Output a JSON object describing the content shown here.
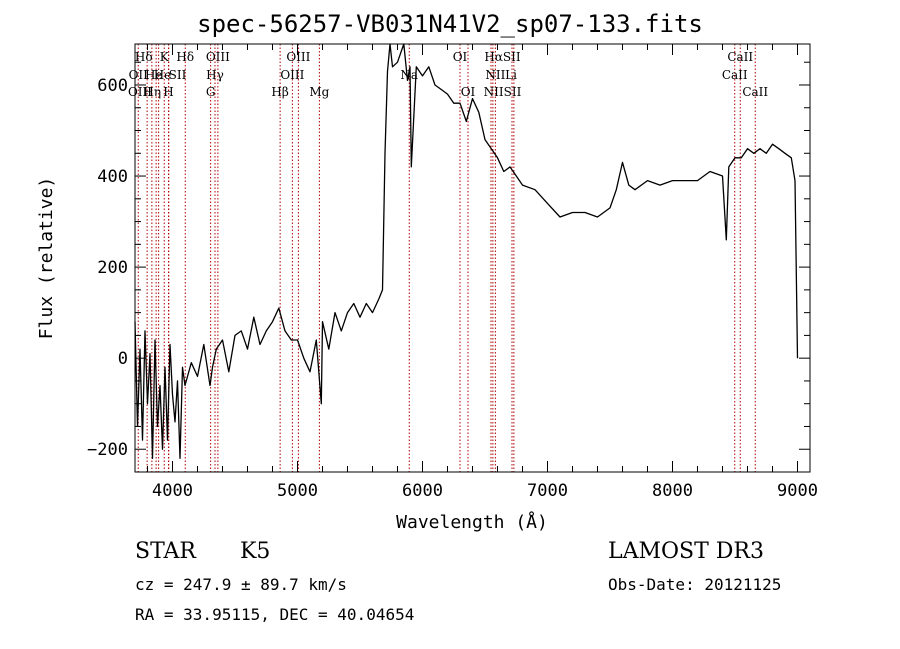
{
  "chart_data": {
    "type": "line",
    "title": "spec-56257-VB031N41V2_sp07-133.fits",
    "xlabel": "Wavelength (Å)",
    "ylabel": "Flux (relative)",
    "xlim": [
      3700,
      9100
    ],
    "ylim": [
      -250,
      690
    ],
    "x_ticks": [
      4000,
      5000,
      6000,
      7000,
      8000,
      9000
    ],
    "x_tick_labels": [
      "4000",
      "5000",
      "6000",
      "7000",
      "8000",
      "9000"
    ],
    "y_ticks": [
      -200,
      0,
      200,
      400,
      600
    ],
    "y_tick_labels": [
      "−200",
      "0",
      "200",
      "400",
      "600"
    ],
    "series": [
      {
        "name": "flux",
        "x": [
          3700,
          3720,
          3740,
          3760,
          3780,
          3800,
          3820,
          3840,
          3860,
          3880,
          3900,
          3920,
          3940,
          3960,
          3980,
          4000,
          4020,
          4040,
          4060,
          4080,
          4100,
          4150,
          4200,
          4250,
          4300,
          4320,
          4350,
          4400,
          4450,
          4500,
          4550,
          4600,
          4650,
          4700,
          4750,
          4800,
          4850,
          4900,
          4950,
          5000,
          5050,
          5100,
          5150,
          5190,
          5200,
          5250,
          5300,
          5350,
          5400,
          5450,
          5500,
          5550,
          5600,
          5650,
          5680,
          5700,
          5720,
          5740,
          5760,
          5800,
          5850,
          5880,
          5900,
          5910,
          5950,
          6000,
          6050,
          6100,
          6150,
          6200,
          6250,
          6300,
          6350,
          6400,
          6450,
          6500,
          6550,
          6600,
          6650,
          6700,
          6750,
          6800,
          6900,
          7000,
          7100,
          7200,
          7300,
          7400,
          7500,
          7550,
          7600,
          7650,
          7700,
          7800,
          7900,
          8000,
          8100,
          8200,
          8300,
          8400,
          8430,
          8450,
          8500,
          8550,
          8600,
          8650,
          8700,
          8750,
          8800,
          8850,
          8900,
          8950,
          8980,
          9000
        ],
        "y": [
          80,
          -150,
          20,
          -180,
          60,
          -100,
          10,
          -220,
          40,
          -150,
          -60,
          -200,
          -20,
          -180,
          30,
          -80,
          -140,
          -50,
          -220,
          -20,
          -60,
          -10,
          -40,
          30,
          -60,
          -20,
          20,
          40,
          -30,
          50,
          60,
          20,
          90,
          30,
          60,
          80,
          110,
          60,
          40,
          40,
          0,
          -30,
          40,
          -100,
          80,
          20,
          100,
          60,
          100,
          120,
          90,
          120,
          100,
          130,
          150,
          450,
          630,
          710,
          640,
          650,
          690,
          610,
          640,
          420,
          640,
          620,
          640,
          600,
          590,
          580,
          560,
          560,
          520,
          570,
          540,
          480,
          460,
          440,
          410,
          420,
          400,
          380,
          370,
          340,
          310,
          320,
          320,
          310,
          330,
          370,
          430,
          380,
          370,
          390,
          380,
          390,
          390,
          390,
          410,
          400,
          260,
          420,
          440,
          440,
          460,
          450,
          460,
          450,
          470,
          460,
          450,
          440,
          390,
          0
        ]
      }
    ],
    "emission_lines": [
      {
        "wavelength": 3726,
        "label": "OII"
      },
      {
        "wavelength": 3797,
        "label": "Hθ"
      },
      {
        "wavelength": 3835,
        "label": "Hη"
      },
      {
        "wavelength": 3869,
        "label": "NeIII"
      },
      {
        "wavelength": 3889,
        "label": "Hζ"
      },
      {
        "wavelength": 3970,
        "label": "Hε"
      },
      {
        "wavelength": 4102,
        "label": "Hδ"
      },
      {
        "wavelength": 4340,
        "label": "Hγ"
      },
      {
        "wavelength": 4363,
        "label": "OIII"
      },
      {
        "wavelength": 4861,
        "label": "Hβ"
      },
      {
        "wavelength": 4959,
        "label": "OIII"
      },
      {
        "wavelength": 5007,
        "label": "OIII"
      },
      {
        "wavelength": 6300,
        "label": "OI"
      },
      {
        "wavelength": 6364,
        "label": "OI"
      },
      {
        "wavelength": 6548,
        "label": "NII"
      },
      {
        "wavelength": 6563,
        "label": "Hα"
      },
      {
        "wavelength": 6583,
        "label": "NII"
      },
      {
        "wavelength": 6716,
        "label": "SII"
      },
      {
        "wavelength": 6731,
        "label": "SII"
      },
      {
        "wavelength": 8498,
        "label": "CaII"
      },
      {
        "wavelength": 8542,
        "label": "CaII"
      },
      {
        "wavelength": 8662,
        "label": "CaII"
      }
    ],
    "absorption_lines": [
      {
        "wavelength": 3934,
        "label": "K"
      },
      {
        "wavelength": 3968,
        "label": "H"
      },
      {
        "wavelength": 4305,
        "label": "G"
      },
      {
        "wavelength": 5175,
        "label": "Mg"
      },
      {
        "wavelength": 5894,
        "label": "Na"
      }
    ],
    "line_labels": [
      {
        "text": "Hδ",
        "wl": 3770,
        "row": 0
      },
      {
        "text": "K",
        "wl": 3934,
        "row": 0
      },
      {
        "text": "Hδ",
        "wl": 4102,
        "row": 0
      },
      {
        "text": "OIII",
        "wl": 4363,
        "row": 0
      },
      {
        "text": "OIII",
        "wl": 5007,
        "row": 0
      },
      {
        "text": "OI",
        "wl": 6300,
        "row": 0
      },
      {
        "text": "HαSII",
        "wl": 6640,
        "row": 0
      },
      {
        "text": "CaII",
        "wl": 8542,
        "row": 0
      },
      {
        "text": "OII",
        "wl": 3726,
        "row": 1
      },
      {
        "text": "He",
        "wl": 3850,
        "row": 1
      },
      {
        "text": "He",
        "wl": 3920,
        "row": 1
      },
      {
        "text": "SII",
        "wl": 4040,
        "row": 1
      },
      {
        "text": "Hγ",
        "wl": 4340,
        "row": 1
      },
      {
        "text": "OIII",
        "wl": 4959,
        "row": 1
      },
      {
        "text": "Na",
        "wl": 5894,
        "row": 1
      },
      {
        "text": "NII",
        "wl": 6583,
        "row": 1
      },
      {
        "text": "Li",
        "wl": 6708,
        "row": 1
      },
      {
        "text": "CaII",
        "wl": 8498,
        "row": 1
      },
      {
        "text": "OIII",
        "wl": 3740,
        "row": 2
      },
      {
        "text": "Hη",
        "wl": 3838,
        "row": 2
      },
      {
        "text": "H",
        "wl": 3968,
        "row": 2
      },
      {
        "text": "G",
        "wl": 4305,
        "row": 2
      },
      {
        "text": "Hβ",
        "wl": 4861,
        "row": 2
      },
      {
        "text": "Mg",
        "wl": 5175,
        "row": 2
      },
      {
        "text": "OI",
        "wl": 6364,
        "row": 2
      },
      {
        "text": "NIISII",
        "wl": 6640,
        "row": 2
      },
      {
        "text": "CaII",
        "wl": 8662,
        "row": 2
      }
    ]
  },
  "info": {
    "object_class": "STAR",
    "subclass": "K5",
    "survey": "LAMOST DR3",
    "redshift": "cz =  247.9 ±  89.7 km/s",
    "obs_date": "Obs-Date: 20121125",
    "coords": "RA =  33.95115, DEC =  40.04654"
  }
}
